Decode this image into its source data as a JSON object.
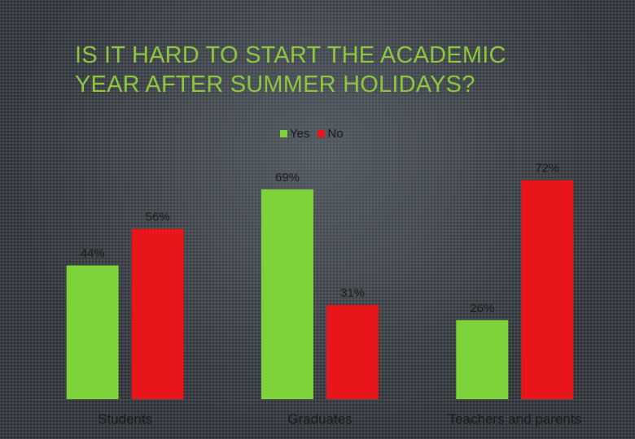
{
  "slide": {
    "title_line1": "Is it hard to start the academic",
    "title_line2": "year after summer holidays?"
  },
  "colors": {
    "title": "#8cc63f",
    "yes": "#7ed33a",
    "no": "#e8161a",
    "axis": "#4a4a4a"
  },
  "chart_data": {
    "type": "bar",
    "title": "Is it hard to start the academic year after summer holidays?",
    "categories": [
      "Students",
      "Graduates",
      "Teachers and parents"
    ],
    "series": [
      {
        "name": "Yes",
        "values": [
          44,
          69,
          26
        ],
        "labels": [
          "44%",
          "69%",
          "26%"
        ],
        "color": "#7ed33a"
      },
      {
        "name": "No",
        "values": [
          56,
          31,
          72
        ],
        "labels": [
          "56%",
          "31%",
          "72%"
        ],
        "color": "#e8161a"
      }
    ],
    "xlabel": "",
    "ylabel": "",
    "ylim": [
      0,
      80
    ],
    "grid": false,
    "legend": "top-center",
    "value_unit": "%"
  }
}
